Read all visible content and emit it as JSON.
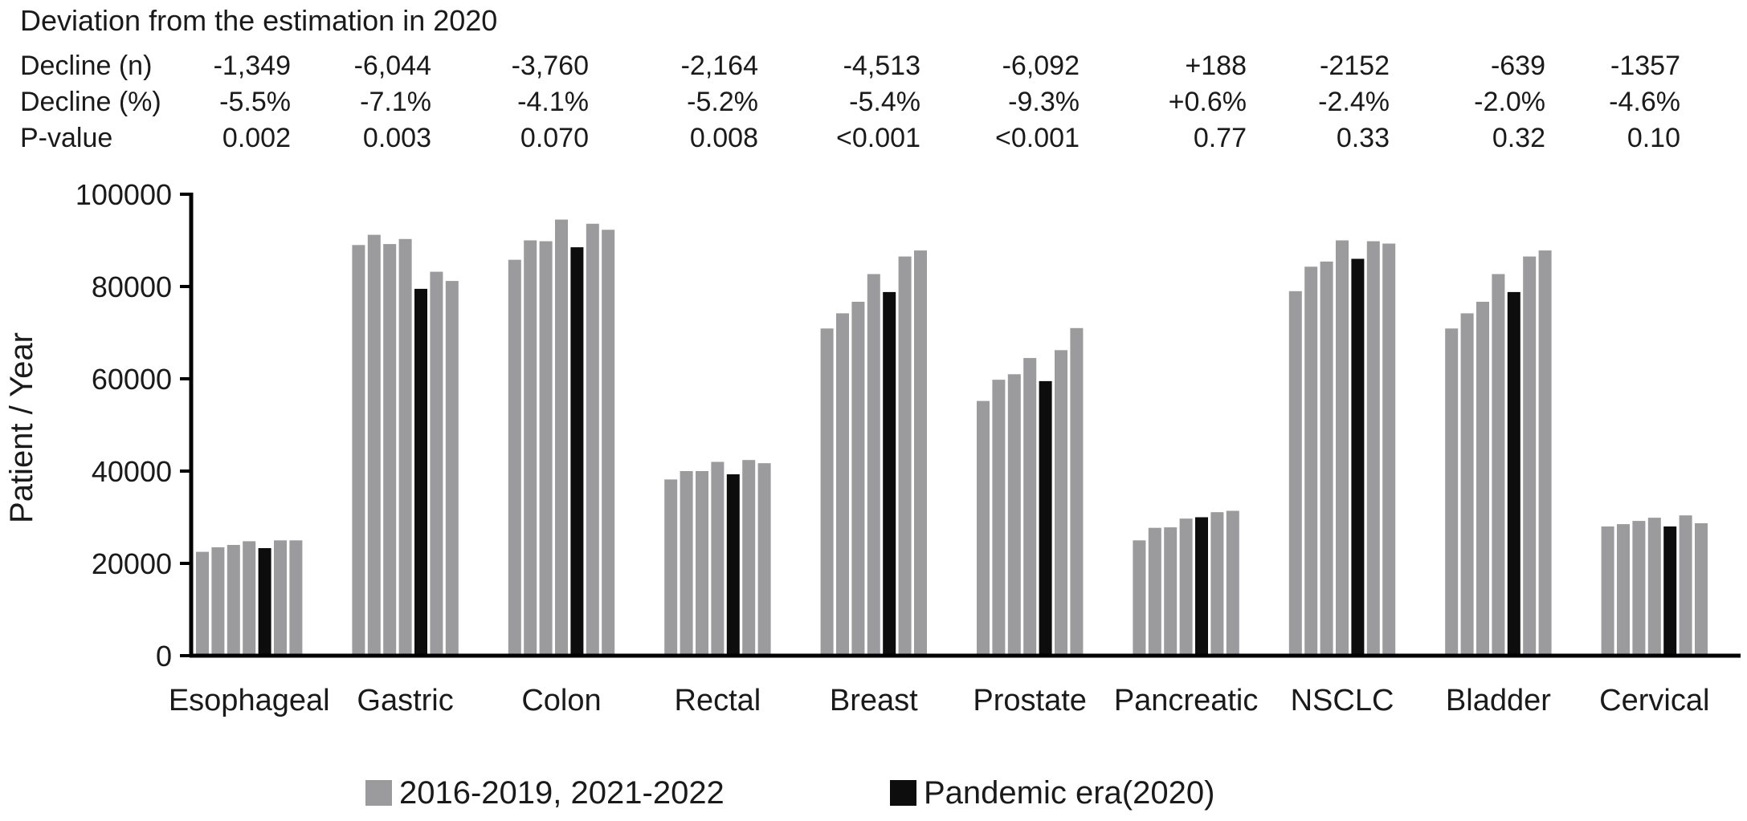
{
  "chart_data": {
    "type": "bar",
    "title": "Deviation from the estimation in 2020",
    "ylabel": "Patient / Year",
    "xlabel": "",
    "ylim": [
      0,
      100000
    ],
    "yticks": [
      "0",
      "20000",
      "40000",
      "60000",
      "80000",
      "100000"
    ],
    "grid": false,
    "legend_position": "bottom",
    "colors": {
      "normal": "#9b9b9d",
      "pandemic": "#0d0d0d"
    },
    "legend": [
      {
        "label": "2016-2019, 2021-2022",
        "color": "#9b9b9d"
      },
      {
        "label": "Pandemic era(2020)",
        "color": "#0d0d0d"
      }
    ],
    "stats_rows": [
      {
        "label": "Decline   (n)",
        "values": [
          "-1,349",
          "-6,044",
          "-3,760",
          "-2,164",
          "-4,513",
          "-6,092",
          "+188",
          "-2152",
          "-639",
          "-1357"
        ]
      },
      {
        "label": "Decline (%)",
        "values": [
          "-5.5%",
          "-7.1%",
          "-4.1%",
          "-5.2%",
          "-5.4%",
          "-9.3%",
          "+0.6%",
          "-2.4%",
          "-2.0%",
          "-4.6%"
        ]
      },
      {
        "label": "P-value",
        "values": [
          "0.002",
          "0.003",
          "0.070",
          "0.008",
          "<0.001",
          "<0.001",
          "0.77",
          "0.33",
          "0.32",
          "0.10"
        ]
      }
    ],
    "categories": [
      "Esophageal",
      "Gastric",
      "Colon",
      "Rectal",
      "Breast",
      "Prostate",
      "Pancreatic",
      "NSCLC",
      "Bladder",
      "Cervical"
    ],
    "years": [
      "2016",
      "2017",
      "2018",
      "2019",
      "2020",
      "2021",
      "2022"
    ],
    "pandemic_year_index": 4,
    "groups": [
      {
        "category": "Esophageal",
        "values": [
          22500,
          23500,
          24000,
          24800,
          23300,
          25000,
          25000
        ]
      },
      {
        "category": "Gastric",
        "values": [
          89000,
          91200,
          89200,
          90300,
          79500,
          83200,
          81200
        ]
      },
      {
        "category": "Colon",
        "values": [
          85800,
          90000,
          89800,
          94500,
          88500,
          93600,
          92300
        ]
      },
      {
        "category": "Rectal",
        "values": [
          38200,
          40000,
          40000,
          42000,
          39300,
          42400,
          41700
        ]
      },
      {
        "category": "Breast",
        "values": [
          70900,
          74200,
          76700,
          82700,
          78800,
          86500,
          87800
        ]
      },
      {
        "category": "Prostate",
        "values": [
          55200,
          59800,
          61000,
          64500,
          59500,
          66200,
          71000
        ]
      },
      {
        "category": "Pancreatic",
        "values": [
          25000,
          27700,
          27800,
          29700,
          30000,
          31100,
          31400
        ]
      },
      {
        "category": "NSCLC",
        "values": [
          79000,
          84300,
          85400,
          90000,
          86000,
          89800,
          89300
        ]
      },
      {
        "category": "Bladder",
        "values": [
          70900,
          74200,
          76700,
          82700,
          78800,
          86500,
          87800
        ]
      },
      {
        "category": "Cervical",
        "values": [
          28000,
          28500,
          29200,
          29900,
          28000,
          30400,
          28700
        ]
      }
    ]
  }
}
